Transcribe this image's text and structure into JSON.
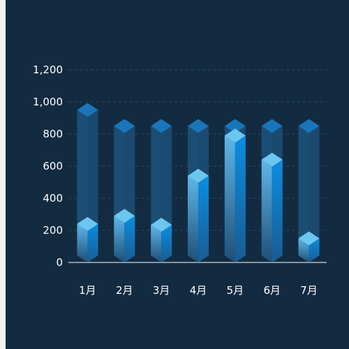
{
  "chart_data": {
    "type": "bar",
    "style": "3d-cylinder-bar",
    "categories": [
      "1月",
      "2月",
      "3月",
      "4月",
      "5月",
      "6月",
      "7月"
    ],
    "background_values": [
      950,
      850,
      850,
      850,
      850,
      850,
      850
    ],
    "values": [
      240,
      290,
      235,
      540,
      790,
      640,
      150
    ],
    "ylim": [
      0,
      1200
    ],
    "yticks": [
      0,
      200,
      400,
      600,
      800,
      1000,
      1200
    ],
    "ytick_labels": [
      "0",
      "200",
      "400",
      "600",
      "800",
      "1,000",
      "1,200"
    ],
    "grid": true,
    "legend": "none",
    "colors": {
      "background": "#132b41",
      "gridline": "#2b4863",
      "axis_line": "#ffffff",
      "track_top": "#1a76bb",
      "track_left": "#1b4e75",
      "track_right": "#1b4a70",
      "bar_top": "#6cc7f0",
      "bar_left_top": "#5fb7e9",
      "bar_left_bottom": "#1d4f77",
      "bar_right_top": "#0a8ee2",
      "bar_right_bottom": "#1a5b91"
    }
  }
}
